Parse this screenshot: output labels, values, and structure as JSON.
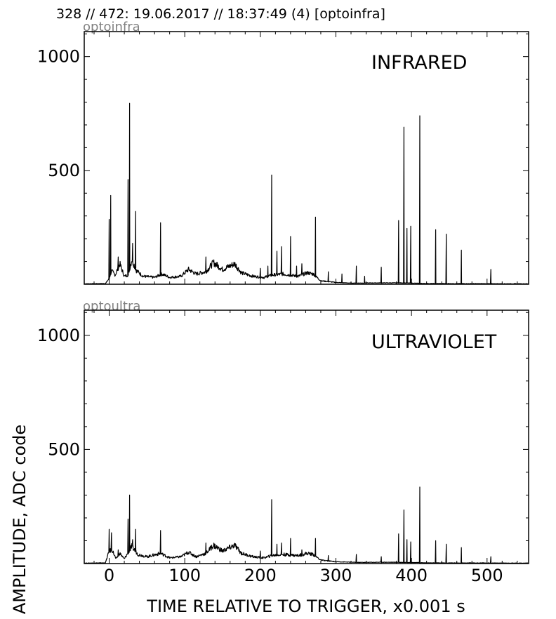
{
  "header": {
    "text": "328 // 472:   19.06.2017 // 18:37:49 (4)  [optoinfra]"
  },
  "xlabel": "TIME RELATIVE TO TRIGGER,   x0.001 s",
  "ylabel": "AMPLITUDE,  ADC code",
  "chart_data": [
    {
      "type": "line",
      "channel": "optoinfra",
      "title": "INFRARED",
      "xlim": [
        -33,
        555
      ],
      "ylim": [
        0,
        1110
      ],
      "xticks": [
        0,
        100,
        200,
        300,
        400,
        500
      ],
      "yticks": [
        500,
        1000
      ],
      "baseline": 2,
      "envelope": [
        [
          -33,
          2
        ],
        [
          -5,
          3
        ],
        [
          0,
          25
        ],
        [
          3,
          60
        ],
        [
          8,
          40
        ],
        [
          14,
          90
        ],
        [
          20,
          35
        ],
        [
          25,
          40
        ],
        [
          30,
          110
        ],
        [
          36,
          60
        ],
        [
          45,
          35
        ],
        [
          60,
          30
        ],
        [
          70,
          45
        ],
        [
          80,
          30
        ],
        [
          95,
          35
        ],
        [
          105,
          65
        ],
        [
          115,
          45
        ],
        [
          128,
          55
        ],
        [
          138,
          95
        ],
        [
          150,
          65
        ],
        [
          166,
          90
        ],
        [
          175,
          50
        ],
        [
          190,
          35
        ],
        [
          205,
          30
        ],
        [
          215,
          40
        ],
        [
          230,
          45
        ],
        [
          250,
          35
        ],
        [
          262,
          50
        ],
        [
          270,
          45
        ],
        [
          280,
          15
        ],
        [
          300,
          8
        ],
        [
          320,
          5
        ],
        [
          360,
          6
        ],
        [
          385,
          6
        ],
        [
          400,
          5
        ],
        [
          420,
          3
        ],
        [
          555,
          2
        ]
      ],
      "spikes": [
        [
          0,
          285
        ],
        [
          2,
          390
        ],
        [
          12,
          120
        ],
        [
          25,
          460
        ],
        [
          27,
          795
        ],
        [
          31,
          180
        ],
        [
          35,
          320
        ],
        [
          68,
          270
        ],
        [
          128,
          120
        ],
        [
          143,
          95
        ],
        [
          200,
          70
        ],
        [
          210,
          80
        ],
        [
          215,
          480
        ],
        [
          222,
          145
        ],
        [
          228,
          165
        ],
        [
          240,
          210
        ],
        [
          248,
          80
        ],
        [
          255,
          90
        ],
        [
          273,
          295
        ],
        [
          290,
          55
        ],
        [
          308,
          45
        ],
        [
          327,
          80
        ],
        [
          338,
          35
        ],
        [
          360,
          75
        ],
        [
          383,
          280
        ],
        [
          390,
          690
        ],
        [
          394,
          245
        ],
        [
          399,
          255
        ],
        [
          411,
          740
        ],
        [
          432,
          240
        ],
        [
          446,
          220
        ],
        [
          466,
          150
        ],
        [
          505,
          65
        ]
      ]
    },
    {
      "type": "line",
      "channel": "optoultra",
      "title": "ULTRAVIOLET",
      "xlim": [
        -33,
        555
      ],
      "ylim": [
        0,
        1110
      ],
      "xticks": [
        0,
        100,
        200,
        300,
        400,
        500
      ],
      "yticks": [
        500,
        1000
      ],
      "baseline": 2,
      "envelope": [
        [
          -33,
          2
        ],
        [
          -5,
          3
        ],
        [
          0,
          55
        ],
        [
          4,
          60
        ],
        [
          9,
          20
        ],
        [
          14,
          45
        ],
        [
          20,
          20
        ],
        [
          30,
          75
        ],
        [
          38,
          40
        ],
        [
          50,
          30
        ],
        [
          68,
          45
        ],
        [
          80,
          25
        ],
        [
          95,
          30
        ],
        [
          105,
          50
        ],
        [
          115,
          30
        ],
        [
          128,
          45
        ],
        [
          138,
          80
        ],
        [
          150,
          55
        ],
        [
          166,
          80
        ],
        [
          175,
          45
        ],
        [
          190,
          30
        ],
        [
          205,
          25
        ],
        [
          215,
          35
        ],
        [
          230,
          40
        ],
        [
          250,
          35
        ],
        [
          262,
          45
        ],
        [
          270,
          40
        ],
        [
          280,
          15
        ],
        [
          300,
          8
        ],
        [
          330,
          5
        ],
        [
          360,
          6
        ],
        [
          400,
          5
        ],
        [
          420,
          3
        ],
        [
          555,
          2
        ]
      ],
      "spikes": [
        [
          0,
          150
        ],
        [
          3,
          135
        ],
        [
          12,
          60
        ],
        [
          25,
          195
        ],
        [
          27,
          300
        ],
        [
          31,
          105
        ],
        [
          35,
          150
        ],
        [
          68,
          145
        ],
        [
          128,
          90
        ],
        [
          143,
          75
        ],
        [
          200,
          55
        ],
        [
          215,
          280
        ],
        [
          222,
          85
        ],
        [
          228,
          90
        ],
        [
          240,
          110
        ],
        [
          255,
          60
        ],
        [
          273,
          110
        ],
        [
          290,
          35
        ],
        [
          327,
          40
        ],
        [
          360,
          30
        ],
        [
          383,
          130
        ],
        [
          390,
          235
        ],
        [
          394,
          105
        ],
        [
          399,
          95
        ],
        [
          411,
          335
        ],
        [
          432,
          100
        ],
        [
          446,
          85
        ],
        [
          466,
          70
        ],
        [
          505,
          30
        ]
      ]
    }
  ]
}
